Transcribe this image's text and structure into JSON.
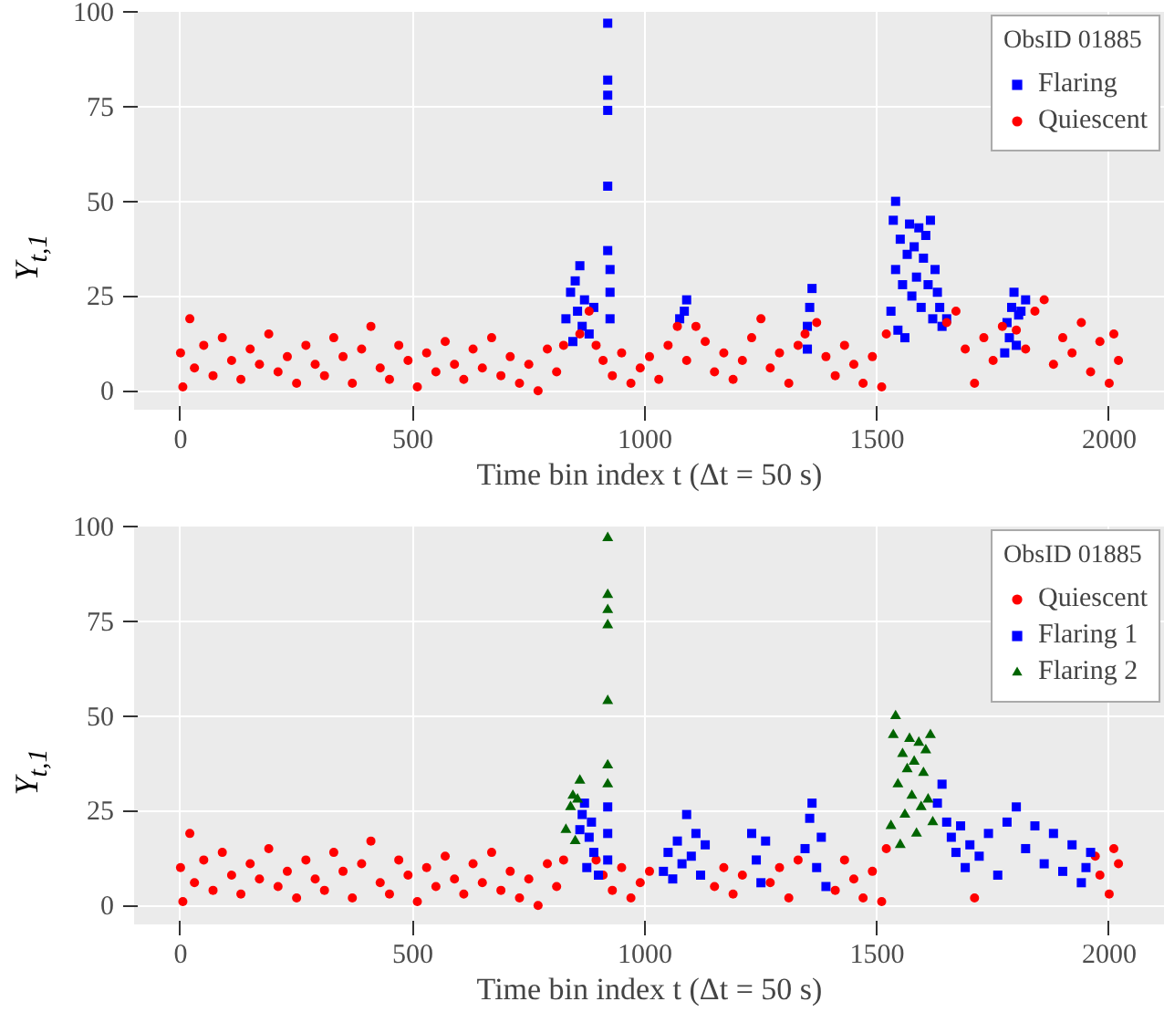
{
  "chart_data": [
    {
      "type": "scatter",
      "xlabel": "Time bin index t (Δt = 50 s)",
      "ylabel": "Y$_{t,1}$",
      "legend_title": "ObsID 01885",
      "legend": "top right",
      "grid": true,
      "xlim": [
        -100,
        2120
      ],
      "ylim": [
        -5,
        100
      ],
      "xticks": [
        0,
        500,
        1000,
        1500,
        2000
      ],
      "yticks": [
        0,
        25,
        50,
        75,
        100
      ],
      "series": [
        {
          "name": "Flaring",
          "color": "#0000ff",
          "marker": "square",
          "x": [
            830,
            840,
            845,
            850,
            855,
            860,
            865,
            870,
            880,
            890,
            920,
            920,
            920,
            920,
            920,
            920,
            925,
            925,
            925,
            1075,
            1090,
            1085,
            1350,
            1355,
            1360,
            1350,
            1530,
            1535,
            1540,
            1540,
            1545,
            1550,
            1555,
            1560,
            1565,
            1570,
            1575,
            1580,
            1585,
            1590,
            1595,
            1600,
            1605,
            1610,
            1615,
            1620,
            1625,
            1630,
            1635,
            1640,
            1650,
            1775,
            1780,
            1785,
            1790,
            1795,
            1800,
            1805,
            1810,
            1820
          ],
          "values": [
            19,
            26,
            13,
            29,
            21,
            33,
            17,
            24,
            15,
            22,
            97,
            82,
            78,
            74,
            54,
            37,
            32,
            26,
            19,
            19,
            24,
            21,
            17,
            22,
            27,
            11,
            21,
            45,
            50,
            32,
            16,
            40,
            28,
            14,
            36,
            44,
            25,
            38,
            30,
            43,
            22,
            35,
            41,
            28,
            45,
            19,
            32,
            26,
            22,
            17,
            19,
            10,
            18,
            14,
            22,
            26,
            12,
            20,
            21,
            24
          ]
        },
        {
          "name": "Quiescent",
          "color": "#ff0000",
          "marker": "circle",
          "x": [
            0,
            5,
            20,
            30,
            50,
            70,
            90,
            110,
            130,
            150,
            170,
            190,
            210,
            230,
            250,
            270,
            290,
            310,
            330,
            350,
            370,
            390,
            410,
            430,
            450,
            470,
            490,
            510,
            530,
            550,
            570,
            590,
            610,
            630,
            650,
            670,
            690,
            710,
            730,
            750,
            770,
            790,
            810,
            825,
            860,
            880,
            895,
            910,
            930,
            950,
            970,
            990,
            1010,
            1030,
            1050,
            1070,
            1090,
            1110,
            1130,
            1150,
            1170,
            1190,
            1210,
            1230,
            1250,
            1270,
            1290,
            1310,
            1330,
            1345,
            1370,
            1390,
            1410,
            1430,
            1450,
            1470,
            1490,
            1510,
            1520,
            1650,
            1670,
            1690,
            1710,
            1730,
            1750,
            1770,
            1800,
            1820,
            1840,
            1860,
            1880,
            1900,
            1920,
            1940,
            1960,
            1980,
            2000,
            2010,
            2020
          ],
          "values": [
            10,
            1,
            19,
            6,
            12,
            4,
            14,
            8,
            3,
            11,
            7,
            15,
            5,
            9,
            2,
            12,
            7,
            4,
            14,
            9,
            2,
            11,
            17,
            6,
            3,
            12,
            8,
            1,
            10,
            5,
            13,
            7,
            3,
            11,
            6,
            14,
            4,
            9,
            2,
            7,
            0,
            11,
            5,
            12,
            15,
            21,
            12,
            8,
            4,
            10,
            2,
            6,
            9,
            3,
            12,
            17,
            8,
            17,
            13,
            5,
            10,
            3,
            8,
            14,
            19,
            6,
            10,
            2,
            12,
            15,
            18,
            9,
            4,
            12,
            7,
            2,
            9,
            1,
            15,
            18,
            21,
            11,
            2,
            14,
            8,
            17,
            16,
            11,
            21,
            24,
            7,
            14,
            10,
            18,
            5,
            13,
            2,
            15,
            8
          ]
        }
      ]
    },
    {
      "type": "scatter",
      "xlabel": "Time bin index t (Δt = 50 s)",
      "ylabel": "Y$_{t,1}$",
      "legend_title": "ObsID 01885",
      "legend": "top right",
      "grid": true,
      "xlim": [
        -100,
        2120
      ],
      "ylim": [
        -5,
        100
      ],
      "xticks": [
        0,
        500,
        1000,
        1500,
        2000
      ],
      "yticks": [
        0,
        25,
        50,
        75,
        100
      ],
      "series": [
        {
          "name": "Quiescent",
          "color": "#ff0000",
          "marker": "circle",
          "x": [
            0,
            5,
            20,
            30,
            50,
            70,
            90,
            110,
            130,
            150,
            170,
            190,
            210,
            230,
            250,
            270,
            290,
            310,
            330,
            350,
            370,
            390,
            410,
            430,
            450,
            470,
            490,
            510,
            530,
            550,
            570,
            590,
            610,
            630,
            650,
            670,
            690,
            710,
            730,
            750,
            770,
            790,
            810,
            825,
            895,
            910,
            930,
            950,
            970,
            990,
            1010,
            1150,
            1170,
            1190,
            1210,
            1270,
            1290,
            1310,
            1330,
            1410,
            1430,
            1450,
            1470,
            1490,
            1510,
            1520,
            1710,
            1970,
            1980,
            2000,
            2010,
            2020
          ],
          "values": [
            10,
            1,
            19,
            6,
            12,
            4,
            14,
            8,
            3,
            11,
            7,
            15,
            5,
            9,
            2,
            12,
            7,
            4,
            14,
            9,
            2,
            11,
            17,
            6,
            3,
            12,
            8,
            1,
            10,
            5,
            13,
            7,
            3,
            11,
            6,
            14,
            4,
            9,
            2,
            7,
            0,
            11,
            5,
            12,
            12,
            8,
            4,
            10,
            2,
            6,
            9,
            5,
            10,
            3,
            8,
            6,
            10,
            2,
            12,
            4,
            12,
            7,
            2,
            9,
            1,
            15,
            2,
            13,
            8,
            3,
            15,
            11
          ]
        },
        {
          "name": "Flaring 1",
          "color": "#0000ff",
          "marker": "square",
          "x": [
            860,
            865,
            870,
            875,
            880,
            885,
            890,
            900,
            920,
            920,
            920,
            1040,
            1050,
            1060,
            1070,
            1080,
            1090,
            1100,
            1110,
            1120,
            1130,
            1230,
            1240,
            1250,
            1260,
            1345,
            1355,
            1360,
            1370,
            1380,
            1390,
            1630,
            1640,
            1650,
            1660,
            1670,
            1680,
            1690,
            1700,
            1720,
            1740,
            1760,
            1780,
            1800,
            1820,
            1840,
            1860,
            1880,
            1900,
            1920,
            1940,
            1960,
            1950
          ],
          "values": [
            20,
            24,
            27,
            10,
            18,
            22,
            14,
            8,
            26,
            19,
            12,
            9,
            14,
            7,
            17,
            11,
            24,
            13,
            19,
            8,
            16,
            19,
            12,
            6,
            17,
            15,
            23,
            27,
            10,
            18,
            5,
            27,
            32,
            22,
            18,
            14,
            21,
            10,
            16,
            13,
            19,
            8,
            22,
            26,
            15,
            21,
            11,
            19,
            9,
            16,
            6,
            14,
            10
          ]
        },
        {
          "name": "Flaring 2",
          "color": "#006400",
          "marker": "triangle",
          "x": [
            830,
            840,
            845,
            850,
            855,
            860,
            920,
            920,
            920,
            920,
            920,
            920,
            920,
            1530,
            1535,
            1540,
            1545,
            1550,
            1555,
            1560,
            1565,
            1570,
            1575,
            1580,
            1585,
            1590,
            1595,
            1600,
            1605,
            1610,
            1615,
            1620
          ],
          "values": [
            20,
            26,
            29,
            17,
            28,
            33,
            97,
            82,
            78,
            74,
            54,
            37,
            32,
            21,
            45,
            50,
            32,
            16,
            40,
            24,
            36,
            44,
            29,
            38,
            19,
            43,
            26,
            35,
            41,
            28,
            45,
            22
          ]
        }
      ]
    }
  ]
}
